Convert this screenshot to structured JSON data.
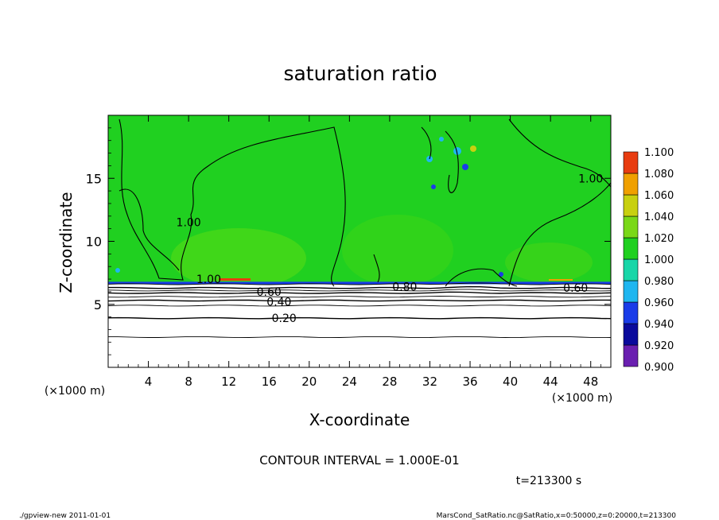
{
  "chart_data": {
    "type": "heatmap",
    "title": "saturation ratio",
    "xlabel": "X-coordinate",
    "ylabel": "Z-coordinate",
    "x_unit_note": "(×1000 m)",
    "y_unit_note": "(×1000 m)",
    "xlim": [
      0,
      50
    ],
    "ylim": [
      0,
      20
    ],
    "x_ticks": [
      4,
      8,
      12,
      16,
      20,
      24,
      28,
      32,
      36,
      40,
      44,
      48
    ],
    "y_ticks": [
      5,
      10,
      15
    ],
    "contour_interval_text": "CONTOUR INTERVAL = 1.000E-01",
    "time_text": "t=213300 s",
    "colorbar": {
      "levels": [
        0.9,
        0.92,
        0.94,
        0.96,
        0.98,
        1.0,
        1.02,
        1.04,
        1.06,
        1.08,
        1.1
      ],
      "labels": [
        "0.900",
        "0.920",
        "0.940",
        "0.960",
        "0.980",
        "1.000",
        "1.020",
        "1.040",
        "1.060",
        "1.080",
        "1.100"
      ],
      "colors": [
        "#6a1fb0",
        "#0a0a9c",
        "#1a3ce8",
        "#1fb6f0",
        "#18d6a8",
        "#20d020",
        "#7ad818",
        "#c8d010",
        "#f0a000",
        "#e83c10",
        "#f08080"
      ]
    },
    "dominant_value": 1.0,
    "contour_labels": [
      {
        "text": "1.00",
        "x": 10.0,
        "z": 7.0
      },
      {
        "text": "0.60",
        "x": 16.0,
        "z": 6.0
      },
      {
        "text": "0.40",
        "x": 17.0,
        "z": 5.2
      },
      {
        "text": "0.20",
        "x": 17.5,
        "z": 3.9
      },
      {
        "text": "0.80",
        "x": 29.5,
        "z": 6.4
      },
      {
        "text": "0.60",
        "x": 46.5,
        "z": 6.3
      },
      {
        "text": "1.00",
        "x": 8.0,
        "z": 11.5
      },
      {
        "text": "1.00",
        "x": 48.0,
        "z": 15.0
      }
    ],
    "layers": [
      {
        "level": 0.9,
        "z": 6.6
      },
      {
        "level": 0.8,
        "z": 6.3
      },
      {
        "level": 0.7,
        "z": 6.1
      },
      {
        "level": 0.6,
        "z": 5.9
      },
      {
        "level": 0.5,
        "z": 5.6
      },
      {
        "level": 0.4,
        "z": 5.3
      },
      {
        "level": 0.3,
        "z": 4.9
      },
      {
        "level": 0.2,
        "z": 3.9
      },
      {
        "level": 0.1,
        "z": 2.4
      }
    ]
  },
  "footer": {
    "left": "./gpview-new  2011-01-01",
    "right": "MarsCond_SatRatio.nc@SatRatio,x=0:50000,z=0:20000,t=213300"
  }
}
